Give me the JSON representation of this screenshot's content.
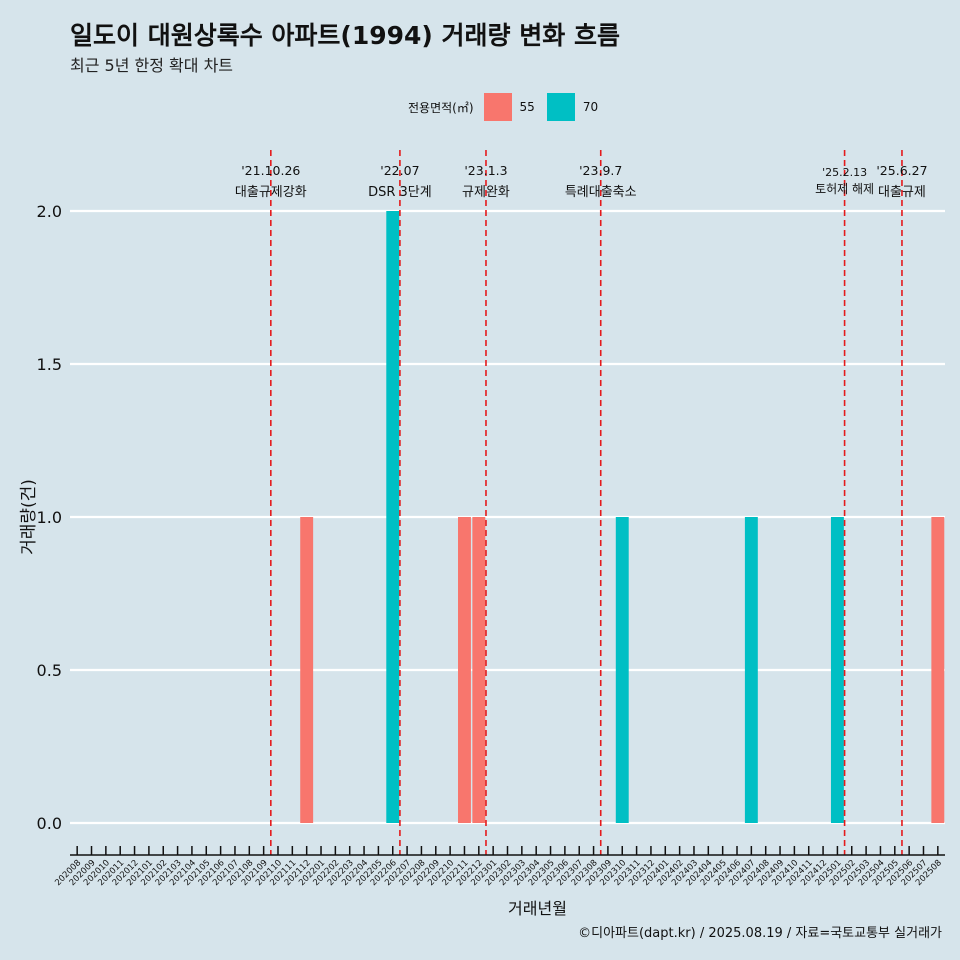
{
  "title": "일도이 대원상록수 아파트(1994) 거래량 변화 흐름",
  "subtitle": "최근 5년 한정 확대 차트",
  "caption": "©디아파트(dapt.kr) / 2025.08.19 / 자료=국토교통부 실거래가",
  "legend": {
    "title": "전용면적(㎡)",
    "items": [
      {
        "label": "55",
        "color": "#f8766d"
      },
      {
        "label": "70",
        "color": "#00bfc4"
      }
    ]
  },
  "chart_data": {
    "type": "bar",
    "xlabel": "거래년월",
    "ylabel": "거래량(건)",
    "ylim": [
      0,
      2
    ],
    "yticks": [
      "0.0",
      "0.5",
      "1.0",
      "1.5",
      "2.0"
    ],
    "grid": "horizontal",
    "categories": [
      "202008",
      "202009",
      "202010",
      "202011",
      "202012",
      "202101",
      "202102",
      "202103",
      "202104",
      "202105",
      "202106",
      "202107",
      "202108",
      "202109",
      "202110",
      "202111",
      "202112",
      "202201",
      "202202",
      "202203",
      "202204",
      "202205",
      "202206",
      "202207",
      "202208",
      "202209",
      "202210",
      "202211",
      "202212",
      "202301",
      "202302",
      "202303",
      "202304",
      "202305",
      "202306",
      "202307",
      "202308",
      "202309",
      "202310",
      "202311",
      "202312",
      "202401",
      "202402",
      "202403",
      "202404",
      "202405",
      "202406",
      "202407",
      "202408",
      "202409",
      "202410",
      "202411",
      "202412",
      "202501",
      "202502",
      "202503",
      "202504",
      "202505",
      "202506",
      "202507",
      "202508"
    ],
    "series": [
      {
        "name": "55",
        "color": "#f8766d",
        "points": [
          [
            "202112",
            1
          ],
          [
            "202211",
            1
          ],
          [
            "202212",
            1
          ],
          [
            "202508",
            1
          ]
        ]
      },
      {
        "name": "70",
        "color": "#00bfc4",
        "points": [
          [
            "202206",
            2
          ],
          [
            "202310",
            1
          ],
          [
            "202407",
            1
          ],
          [
            "202501",
            1
          ]
        ]
      }
    ],
    "annotations": [
      {
        "date": "'21.10.26",
        "label": "대출규제강화",
        "x": "202110"
      },
      {
        "date": "'22.07",
        "label": "DSR 3단계",
        "x": "202207"
      },
      {
        "date": "'23.1.3",
        "label": "규제완화",
        "x": "202301"
      },
      {
        "date": "'23.9.7",
        "label": "특례대출축소",
        "x": "202309"
      },
      {
        "date": "'25.2.13",
        "label": "토허제 해제",
        "x": "202502"
      },
      {
        "date": "'25.6.27",
        "label": "대출규제",
        "x": "202506"
      }
    ]
  }
}
